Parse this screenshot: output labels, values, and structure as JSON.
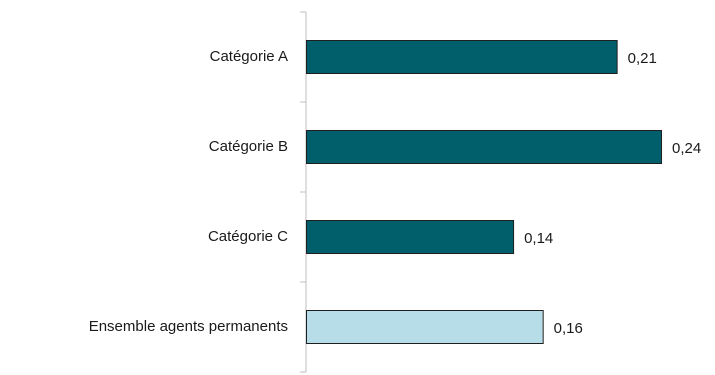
{
  "chart_data": {
    "type": "bar",
    "orientation": "horizontal",
    "categories": [
      "Catégorie A",
      "Catégorie B",
      "Catégorie C",
      "Ensemble agents permanents"
    ],
    "values": [
      0.21,
      0.24,
      0.14,
      0.16
    ],
    "value_labels": [
      "0,21",
      "0,24",
      "0,14",
      "0,16"
    ],
    "xlim": [
      0,
      0.24
    ],
    "grid": false,
    "legend": "none",
    "colors": [
      "#005f6b",
      "#005f6b",
      "#005f6b",
      "#b7dde8"
    ],
    "edge_color": "#1f1f1f",
    "axis_color": "#bfbfbf"
  }
}
